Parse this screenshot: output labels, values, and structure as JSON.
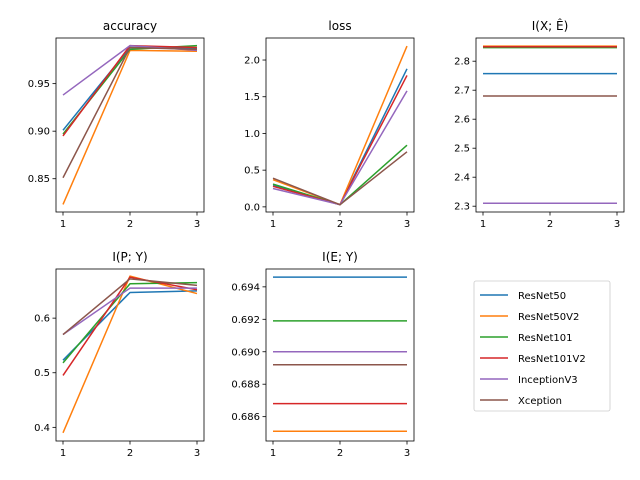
{
  "colors": {
    "ResNet50": "#1f77b4",
    "ResNet50V2": "#ff7f0e",
    "ResNet101": "#2ca02c",
    "ResNet101V2": "#d62728",
    "InceptionV3": "#9467bd",
    "Xception": "#8c564b"
  },
  "legend": {
    "placement": "bottom-right",
    "entries": [
      "ResNet50",
      "ResNet50V2",
      "ResNet101",
      "ResNet101V2",
      "InceptionV3",
      "Xception"
    ]
  },
  "chart_data": [
    {
      "type": "line",
      "title": "accuracy",
      "x": [
        1,
        2,
        3
      ],
      "xticks": [
        "1",
        "2",
        "3"
      ],
      "ylim": [
        0.815,
        0.998
      ],
      "yticks": [
        "0.85",
        "0.90",
        "0.95"
      ],
      "ytick_values": [
        0.85,
        0.9,
        0.95
      ],
      "series": [
        {
          "name": "ResNet50",
          "values": [
            0.901,
            0.988,
            0.987
          ]
        },
        {
          "name": "ResNet50V2",
          "values": [
            0.823,
            0.985,
            0.984
          ]
        },
        {
          "name": "ResNet101",
          "values": [
            0.897,
            0.986,
            0.99
          ]
        },
        {
          "name": "ResNet101V2",
          "values": [
            0.895,
            0.99,
            0.988
          ]
        },
        {
          "name": "InceptionV3",
          "values": [
            0.938,
            0.99,
            0.985
          ]
        },
        {
          "name": "Xception",
          "values": [
            0.851,
            0.988,
            0.986
          ]
        }
      ]
    },
    {
      "type": "line",
      "title": "loss",
      "x": [
        1,
        2,
        3
      ],
      "xticks": [
        "1",
        "2",
        "3"
      ],
      "ylim": [
        -0.07,
        2.3
      ],
      "yticks": [
        "0.0",
        "0.5",
        "1.0",
        "1.5",
        "2.0"
      ],
      "ytick_values": [
        0.0,
        0.5,
        1.0,
        1.5,
        2.0
      ],
      "series": [
        {
          "name": "ResNet50",
          "values": [
            0.29,
            0.03,
            1.88
          ]
        },
        {
          "name": "ResNet50V2",
          "values": [
            0.37,
            0.03,
            2.19
          ]
        },
        {
          "name": "ResNet101",
          "values": [
            0.31,
            0.03,
            0.84
          ]
        },
        {
          "name": "ResNet101V2",
          "values": [
            0.28,
            0.03,
            1.79
          ]
        },
        {
          "name": "InceptionV3",
          "values": [
            0.25,
            0.03,
            1.58
          ]
        },
        {
          "name": "Xception",
          "values": [
            0.39,
            0.03,
            0.75
          ]
        }
      ]
    },
    {
      "type": "line",
      "title": "I(X; Ê)",
      "x": [
        1,
        2,
        3
      ],
      "xticks": [
        "1",
        "2",
        "3"
      ],
      "ylim": [
        2.28,
        2.88
      ],
      "yticks": [
        "2.3",
        "2.4",
        "2.5",
        "2.6",
        "2.7",
        "2.8"
      ],
      "ytick_values": [
        2.3,
        2.4,
        2.5,
        2.6,
        2.7,
        2.8
      ],
      "series": [
        {
          "name": "ResNet50",
          "values": [
            2.757,
            2.757,
            2.757
          ]
        },
        {
          "name": "ResNet50V2",
          "values": [
            2.852,
            2.852,
            2.852
          ]
        },
        {
          "name": "ResNet101",
          "values": [
            2.847,
            2.847,
            2.847
          ]
        },
        {
          "name": "ResNet101V2",
          "values": [
            2.85,
            2.85,
            2.85
          ]
        },
        {
          "name": "InceptionV3",
          "values": [
            2.31,
            2.31,
            2.31
          ]
        },
        {
          "name": "Xception",
          "values": [
            2.68,
            2.68,
            2.68
          ]
        }
      ]
    },
    {
      "type": "line",
      "title": "I(P; Y)",
      "x": [
        1,
        2,
        3
      ],
      "xticks": [
        "1",
        "2",
        "3"
      ],
      "ylim": [
        0.375,
        0.69
      ],
      "yticks": [
        "0.4",
        "0.5",
        "0.6"
      ],
      "ytick_values": [
        0.4,
        0.5,
        0.6
      ],
      "series": [
        {
          "name": "ResNet50",
          "values": [
            0.523,
            0.647,
            0.65
          ]
        },
        {
          "name": "ResNet50V2",
          "values": [
            0.39,
            0.677,
            0.645
          ]
        },
        {
          "name": "ResNet101",
          "values": [
            0.518,
            0.663,
            0.665
          ]
        },
        {
          "name": "ResNet101V2",
          "values": [
            0.495,
            0.675,
            0.652
          ]
        },
        {
          "name": "InceptionV3",
          "values": [
            0.57,
            0.655,
            0.655
          ]
        },
        {
          "name": "Xception",
          "values": [
            0.57,
            0.672,
            0.66
          ]
        }
      ]
    },
    {
      "type": "line",
      "title": "I(E; Y)",
      "x": [
        1,
        2,
        3
      ],
      "xticks": [
        "1",
        "2",
        "3"
      ],
      "ylim": [
        0.6845,
        0.6951
      ],
      "yticks": [
        "0.686",
        "0.688",
        "0.690",
        "0.692",
        "0.694"
      ],
      "ytick_values": [
        0.686,
        0.688,
        0.69,
        0.692,
        0.694
      ],
      "series": [
        {
          "name": "ResNet50",
          "values": [
            0.6946,
            0.6946,
            0.6946
          ]
        },
        {
          "name": "ResNet50V2",
          "values": [
            0.6851,
            0.6851,
            0.6851
          ]
        },
        {
          "name": "ResNet101",
          "values": [
            0.6919,
            0.6919,
            0.6919
          ]
        },
        {
          "name": "ResNet101V2",
          "values": [
            0.6868,
            0.6868,
            0.6868
          ]
        },
        {
          "name": "InceptionV3",
          "values": [
            0.69,
            0.69,
            0.69
          ]
        },
        {
          "name": "Xception",
          "values": [
            0.6892,
            0.6892,
            0.6892
          ]
        }
      ]
    }
  ]
}
